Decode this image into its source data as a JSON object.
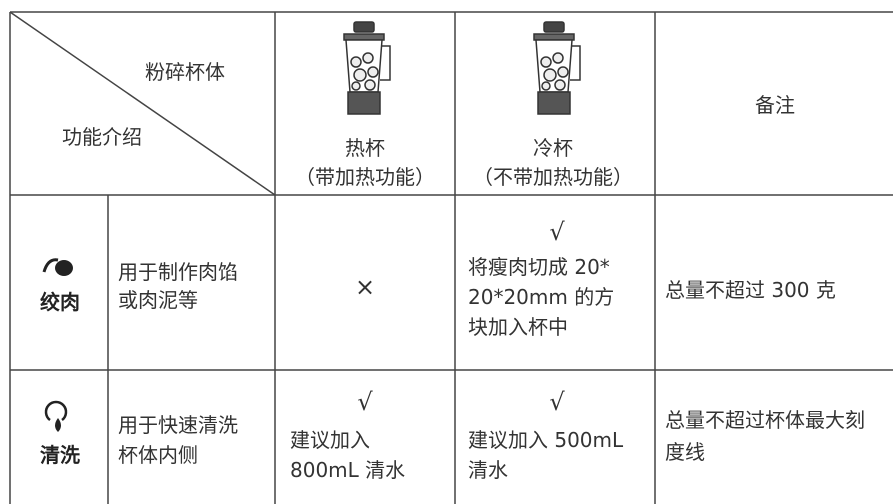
{
  "header": {
    "corner_top": "粉碎杯体",
    "corner_bottom": "功能介绍",
    "columns": [
      {
        "title": "热杯",
        "subtitle": "（带加热功能）"
      },
      {
        "title": "冷杯",
        "subtitle": "（不带加热功能）"
      },
      {
        "title": "备注"
      }
    ]
  },
  "rows": [
    {
      "name": "绞肉",
      "description": [
        "用于制作肉馅",
        "或肉泥等"
      ],
      "hot": {
        "mark": "×"
      },
      "cold": {
        "mark": "√",
        "text": [
          "将瘦肉切成 20*",
          "20*20mm 的方",
          "块加入杯中"
        ]
      },
      "note": [
        "总量不超过 300 克"
      ]
    },
    {
      "name": "清洗",
      "description": [
        "用于快速清洗",
        "杯体内侧"
      ],
      "hot": {
        "mark": "√",
        "text": [
          "建议加入",
          "800mL 清水"
        ]
      },
      "cold": {
        "mark": "√",
        "text": [
          "建议加入 500mL",
          "清水"
        ]
      },
      "note": [
        "总量不超过杯体最大刻",
        "度线"
      ]
    }
  ]
}
